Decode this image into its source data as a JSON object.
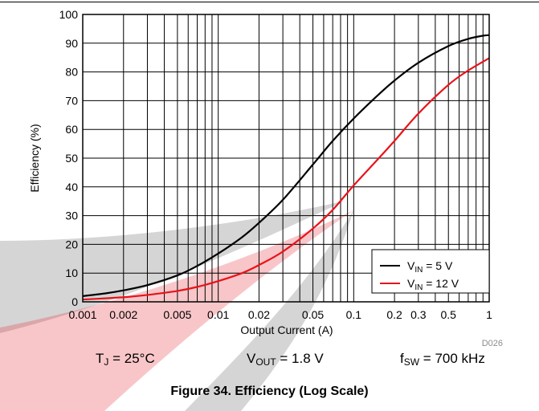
{
  "chart_data": {
    "type": "line",
    "title": "Figure 34. Efficiency (Log Scale)",
    "xlabel": "Output Current (A)",
    "ylabel": "Efficiency (%)",
    "x_scale": "log",
    "xlim": [
      0.001,
      1
    ],
    "ylim": [
      0,
      100
    ],
    "grid": true,
    "legend_position": "bottom-right",
    "x_ticks": [
      0.001,
      0.002,
      0.005,
      0.01,
      0.02,
      0.05,
      0.1,
      0.2,
      0.3,
      0.5,
      1
    ],
    "x_tick_labels": [
      "0.001",
      "0.002",
      "0.005",
      "0.01",
      "0.02",
      "0.05",
      "0.1",
      "0.2",
      "0.3",
      "0.5",
      "1"
    ],
    "y_ticks": [
      0,
      10,
      20,
      30,
      40,
      50,
      60,
      70,
      80,
      90,
      100
    ],
    "y_tick_labels": [
      "0",
      "10",
      "20",
      "30",
      "40",
      "50",
      "60",
      "70",
      "80",
      "90",
      "100"
    ],
    "series": [
      {
        "name": "V_IN = 5 V",
        "color": "#000000",
        "x": [
          0.001,
          0.0015,
          0.002,
          0.003,
          0.005,
          0.007,
          0.01,
          0.015,
          0.02,
          0.03,
          0.05,
          0.07,
          0.1,
          0.15,
          0.2,
          0.3,
          0.5,
          0.7,
          0.9,
          1.0
        ],
        "y": [
          2.0,
          3.0,
          4.0,
          5.8,
          9.2,
          12.5,
          16.8,
          22.5,
          27.5,
          35.5,
          47.8,
          56.0,
          63.8,
          71.8,
          77.0,
          83.2,
          89.0,
          91.5,
          92.6,
          92.8
        ]
      },
      {
        "name": "V_IN = 12 V",
        "color": "#e8131a",
        "x": [
          0.001,
          0.002,
          0.003,
          0.005,
          0.007,
          0.01,
          0.015,
          0.02,
          0.03,
          0.05,
          0.07,
          0.1,
          0.15,
          0.2,
          0.3,
          0.5,
          0.7,
          1.0
        ],
        "y": [
          0.8,
          1.6,
          2.4,
          3.8,
          5.2,
          7.2,
          10.0,
          12.8,
          17.5,
          25.5,
          32.0,
          40.5,
          49.5,
          56.0,
          65.5,
          75.5,
          80.5,
          84.8
        ]
      }
    ],
    "legend": [
      {
        "main": "V",
        "sub": "IN",
        "rest": " = 5 V",
        "color": "#000000"
      },
      {
        "main": "V",
        "sub": "IN",
        "rest": " = 12 V",
        "color": "#e8131a"
      }
    ],
    "annotation": "D026"
  },
  "conditions": {
    "tj": {
      "main": "T",
      "sub": "J",
      "rest": " = 25°C"
    },
    "vout": {
      "main": "V",
      "sub": "OUT",
      "rest": " = 1.8 V"
    },
    "fsw": {
      "main": "f",
      "sub": "SW",
      "rest": " = 700 kHz"
    }
  },
  "caption": "Figure 34. Efficiency (Log Scale)",
  "watermark_colors": {
    "red": "#e5323c",
    "gray": "#9a9a9a"
  }
}
